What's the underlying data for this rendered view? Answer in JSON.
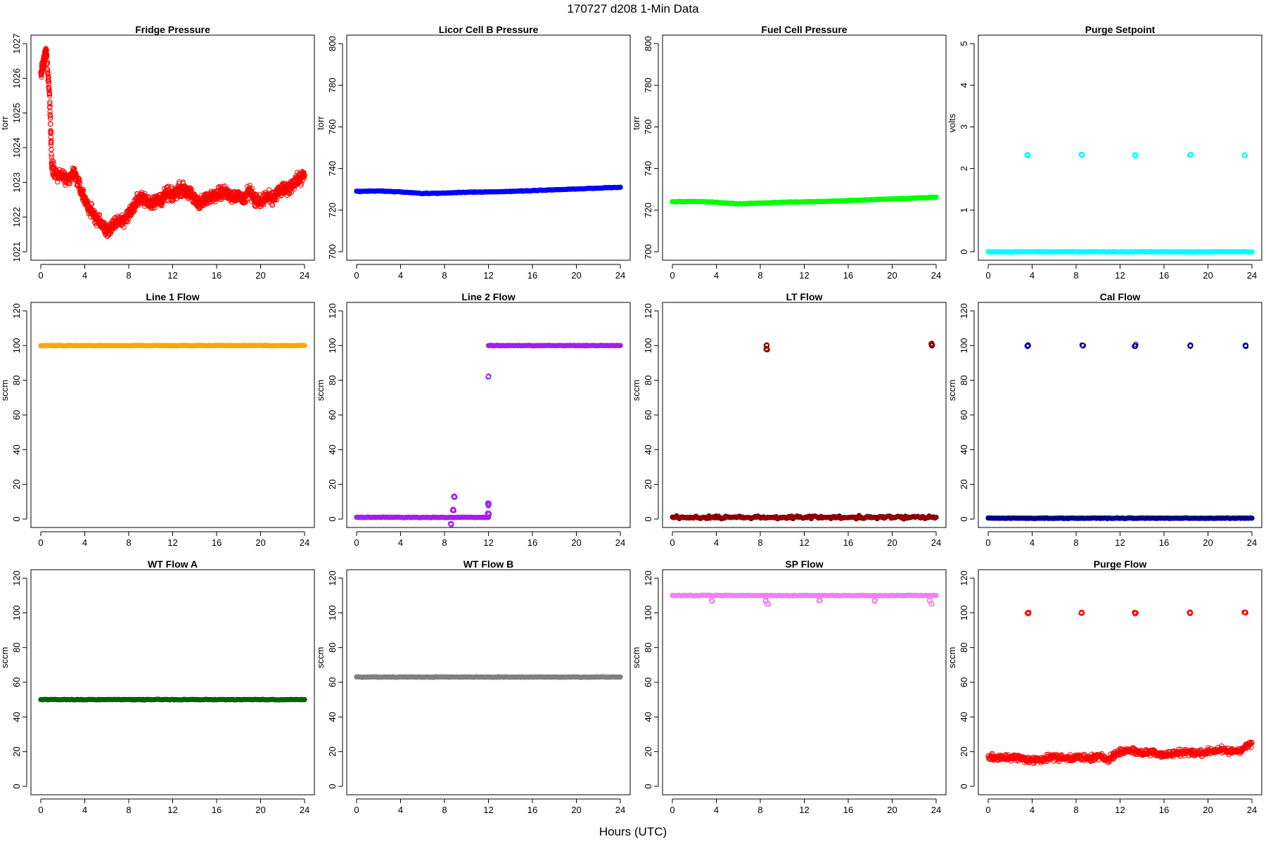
{
  "figure": {
    "title": "170727   d208   1-Min Data",
    "xlabel": "Hours (UTC)"
  },
  "chart_data": [
    {
      "type": "scatter",
      "title": "Fridge Pressure",
      "ylabel": "torr",
      "ylim": [
        1021,
        1027
      ],
      "yticks": [
        1021,
        1022,
        1023,
        1024,
        1025,
        1026,
        1027
      ],
      "xlim": [
        0,
        24
      ],
      "xticks": [
        0,
        4,
        8,
        12,
        16,
        20,
        24
      ],
      "color": "#ff0000",
      "marker": "open-circle",
      "series": [
        {
          "x": [
            0,
            0.3,
            0.5,
            0.8,
            1,
            1.5,
            2,
            2.5,
            3,
            3.5,
            4,
            4.5,
            5,
            5.5,
            6,
            6.5,
            7,
            7.5,
            8,
            8.5,
            9,
            9.5,
            10,
            10.5,
            11,
            11.5,
            12,
            12.5,
            13,
            13.5,
            14,
            14.5,
            15,
            15.5,
            16,
            16.5,
            17,
            17.5,
            18,
            18.5,
            19,
            19.5,
            20,
            20.5,
            21,
            21.5,
            22,
            22.5,
            23,
            23.5,
            24
          ],
          "y": [
            1026.1,
            1026.5,
            1026.8,
            1025.5,
            1023.5,
            1023.2,
            1023.2,
            1023.0,
            1023.3,
            1022.9,
            1022.5,
            1022.2,
            1022.0,
            1021.8,
            1021.6,
            1021.7,
            1021.9,
            1021.9,
            1022.1,
            1022.3,
            1022.6,
            1022.5,
            1022.4,
            1022.5,
            1022.5,
            1022.7,
            1022.6,
            1022.8,
            1022.8,
            1022.7,
            1022.5,
            1022.4,
            1022.5,
            1022.6,
            1022.7,
            1022.7,
            1022.7,
            1022.6,
            1022.6,
            1022.5,
            1022.8,
            1022.5,
            1022.4,
            1022.6,
            1022.5,
            1022.7,
            1022.8,
            1022.8,
            1023.0,
            1023.1,
            1023.2
          ]
        }
      ]
    },
    {
      "type": "scatter",
      "title": "Licor Cell B Pressure",
      "ylabel": "torr",
      "ylim": [
        700,
        800
      ],
      "yticks": [
        700,
        720,
        740,
        760,
        780,
        800
      ],
      "xlim": [
        0,
        24
      ],
      "xticks": [
        0,
        4,
        8,
        12,
        16,
        20,
        24
      ],
      "color": "#0000ff",
      "marker": "line-of-circles",
      "series": [
        {
          "x": [
            0,
            2,
            4,
            6,
            8,
            10,
            12,
            14,
            16,
            18,
            20,
            22,
            24
          ],
          "y": [
            729,
            729.2,
            728.8,
            728,
            728.2,
            728.6,
            728.8,
            729,
            729.4,
            729.8,
            730.2,
            730.6,
            731
          ]
        }
      ]
    },
    {
      "type": "scatter",
      "title": "Fuel Cell Pressure",
      "ylabel": "torr",
      "ylim": [
        700,
        800
      ],
      "yticks": [
        700,
        720,
        740,
        760,
        780,
        800
      ],
      "xlim": [
        0,
        24
      ],
      "xticks": [
        0,
        4,
        8,
        12,
        16,
        20,
        24
      ],
      "color": "#00ff00",
      "marker": "line-of-circles",
      "series": [
        {
          "x": [
            0,
            2,
            4,
            6,
            8,
            10,
            12,
            14,
            16,
            18,
            20,
            22,
            24
          ],
          "y": [
            724,
            724.2,
            723.8,
            723,
            723.4,
            723.8,
            724,
            724.2,
            724.6,
            725,
            725.4,
            725.8,
            726.2
          ]
        }
      ]
    },
    {
      "type": "scatter",
      "title": "Purge Setpoint",
      "ylabel": "volts",
      "ylim": [
        0,
        5
      ],
      "yticks": [
        0,
        1,
        2,
        3,
        4,
        5
      ],
      "xlim": [
        0,
        24
      ],
      "xticks": [
        0,
        4,
        8,
        12,
        16,
        20,
        24
      ],
      "color": "#00ffff",
      "marker": "line-of-circles",
      "series": [
        {
          "x": [
            0,
            24
          ],
          "y": [
            0,
            0
          ]
        }
      ],
      "points": [
        {
          "x": 3.6,
          "y": 2.32
        },
        {
          "x": 8.5,
          "y": 2.33
        },
        {
          "x": 13.4,
          "y": 2.32
        },
        {
          "x": 18.4,
          "y": 2.33
        },
        {
          "x": 23.4,
          "y": 2.32
        }
      ]
    },
    {
      "type": "scatter",
      "title": "Line 1 Flow",
      "ylabel": "sccm",
      "ylim": [
        0,
        120
      ],
      "yticks": [
        0,
        20,
        40,
        60,
        80,
        100,
        120
      ],
      "xlim": [
        0,
        24
      ],
      "xticks": [
        0,
        4,
        8,
        12,
        16,
        20,
        24
      ],
      "color": "#ffa500",
      "marker": "line-of-circles",
      "series": [
        {
          "x": [
            0,
            24
          ],
          "y": [
            100,
            100
          ]
        }
      ]
    },
    {
      "type": "scatter",
      "title": "Line 2 Flow",
      "ylabel": "sccm",
      "ylim": [
        0,
        120
      ],
      "yticks": [
        0,
        20,
        40,
        60,
        80,
        100,
        120
      ],
      "xlim": [
        0,
        24
      ],
      "xticks": [
        0,
        4,
        8,
        12,
        16,
        20,
        24
      ],
      "color": "#a020f0",
      "marker": "line-of-circles",
      "series": [
        {
          "x": [
            0,
            12
          ],
          "y": [
            1,
            1
          ]
        },
        {
          "x": [
            12,
            24
          ],
          "y": [
            100,
            100
          ]
        }
      ],
      "points": [
        {
          "x": 12,
          "y": 82
        },
        {
          "x": 8.9,
          "y": 13
        },
        {
          "x": 12,
          "y": 9
        },
        {
          "x": 12,
          "y": 8
        },
        {
          "x": 8.8,
          "y": 5
        },
        {
          "x": 8.6,
          "y": -3
        },
        {
          "x": 12,
          "y": 3
        }
      ]
    },
    {
      "type": "scatter",
      "title": "LT Flow",
      "ylabel": "sccm",
      "ylim": [
        0,
        120
      ],
      "yticks": [
        0,
        20,
        40,
        60,
        80,
        100,
        120
      ],
      "xlim": [
        0,
        24
      ],
      "xticks": [
        0,
        4,
        8,
        12,
        16,
        20,
        24
      ],
      "color": "#8b0000",
      "marker": "line-of-circles",
      "series": [
        {
          "x": [
            0,
            24
          ],
          "y": [
            1,
            1
          ]
        }
      ],
      "points": [
        {
          "x": 8.6,
          "y": 100
        },
        {
          "x": 8.6,
          "y": 98
        },
        {
          "x": 23.6,
          "y": 101
        },
        {
          "x": 23.6,
          "y": 100
        }
      ]
    },
    {
      "type": "scatter",
      "title": "Cal Flow",
      "ylabel": "sccm",
      "ylim": [
        0,
        120
      ],
      "yticks": [
        0,
        20,
        40,
        60,
        80,
        100,
        120
      ],
      "xlim": [
        0,
        24
      ],
      "xticks": [
        0,
        4,
        8,
        12,
        16,
        20,
        24
      ],
      "color": "#00008b",
      "marker": "line-of-circles",
      "series": [
        {
          "x": [
            0,
            24
          ],
          "y": [
            0.5,
            0.5
          ]
        }
      ],
      "points": [
        {
          "x": 3.6,
          "y": 100
        },
        {
          "x": 8.6,
          "y": 100
        },
        {
          "x": 13.4,
          "y": 100
        },
        {
          "x": 18.4,
          "y": 100
        },
        {
          "x": 23.4,
          "y": 100
        }
      ]
    },
    {
      "type": "scatter",
      "title": "WT Flow A",
      "ylabel": "sccm",
      "ylim": [
        0,
        120
      ],
      "yticks": [
        0,
        20,
        40,
        60,
        80,
        100,
        120
      ],
      "xlim": [
        0,
        24
      ],
      "xticks": [
        0,
        4,
        8,
        12,
        16,
        20,
        24
      ],
      "color": "#006400",
      "marker": "line-of-circles",
      "series": [
        {
          "x": [
            0,
            24
          ],
          "y": [
            50,
            50
          ]
        }
      ]
    },
    {
      "type": "scatter",
      "title": "WT Flow B",
      "ylabel": "sccm",
      "ylim": [
        0,
        120
      ],
      "yticks": [
        0,
        20,
        40,
        60,
        80,
        100,
        120
      ],
      "xlim": [
        0,
        24
      ],
      "xticks": [
        0,
        4,
        8,
        12,
        16,
        20,
        24
      ],
      "color": "#808080",
      "marker": "line-of-circles",
      "series": [
        {
          "x": [
            0,
            24
          ],
          "y": [
            63,
            63
          ]
        }
      ]
    },
    {
      "type": "scatter",
      "title": "SP Flow",
      "ylabel": "sccm",
      "ylim": [
        0,
        120
      ],
      "yticks": [
        0,
        20,
        40,
        60,
        80,
        100,
        120
      ],
      "xlim": [
        0,
        24
      ],
      "xticks": [
        0,
        4,
        8,
        12,
        16,
        20,
        24
      ],
      "color": "#ee82ee",
      "marker": "line-of-circles",
      "series": [
        {
          "x": [
            0,
            24
          ],
          "y": [
            110,
            110
          ]
        }
      ],
      "points": [
        {
          "x": 3.6,
          "y": 107
        },
        {
          "x": 8.5,
          "y": 107
        },
        {
          "x": 8.7,
          "y": 105
        },
        {
          "x": 13.4,
          "y": 107
        },
        {
          "x": 18.4,
          "y": 107
        },
        {
          "x": 23.4,
          "y": 107
        },
        {
          "x": 23.6,
          "y": 105
        }
      ]
    },
    {
      "type": "scatter",
      "title": "Purge Flow",
      "ylabel": "sccm",
      "ylim": [
        0,
        120
      ],
      "yticks": [
        0,
        20,
        40,
        60,
        80,
        100,
        120
      ],
      "xlim": [
        0,
        24
      ],
      "xticks": [
        0,
        4,
        8,
        12,
        16,
        20,
        24
      ],
      "color": "#ff0000",
      "marker": "open-circle",
      "series": [
        {
          "x": [
            0,
            1,
            2,
            3,
            4,
            5,
            6,
            7,
            8,
            9,
            10,
            11,
            12,
            13,
            14,
            15,
            16,
            17,
            18,
            19,
            20,
            21,
            22,
            23,
            24
          ],
          "y": [
            17,
            16,
            17,
            16,
            15,
            16,
            17,
            16,
            17,
            16,
            17,
            16,
            20,
            21,
            19,
            20,
            18,
            19,
            20,
            19,
            20,
            21,
            20,
            21,
            25
          ]
        }
      ],
      "points": [
        {
          "x": 3.6,
          "y": 100
        },
        {
          "x": 8.5,
          "y": 100
        },
        {
          "x": 13.4,
          "y": 100
        },
        {
          "x": 18.4,
          "y": 100
        },
        {
          "x": 23.4,
          "y": 100
        }
      ]
    }
  ]
}
